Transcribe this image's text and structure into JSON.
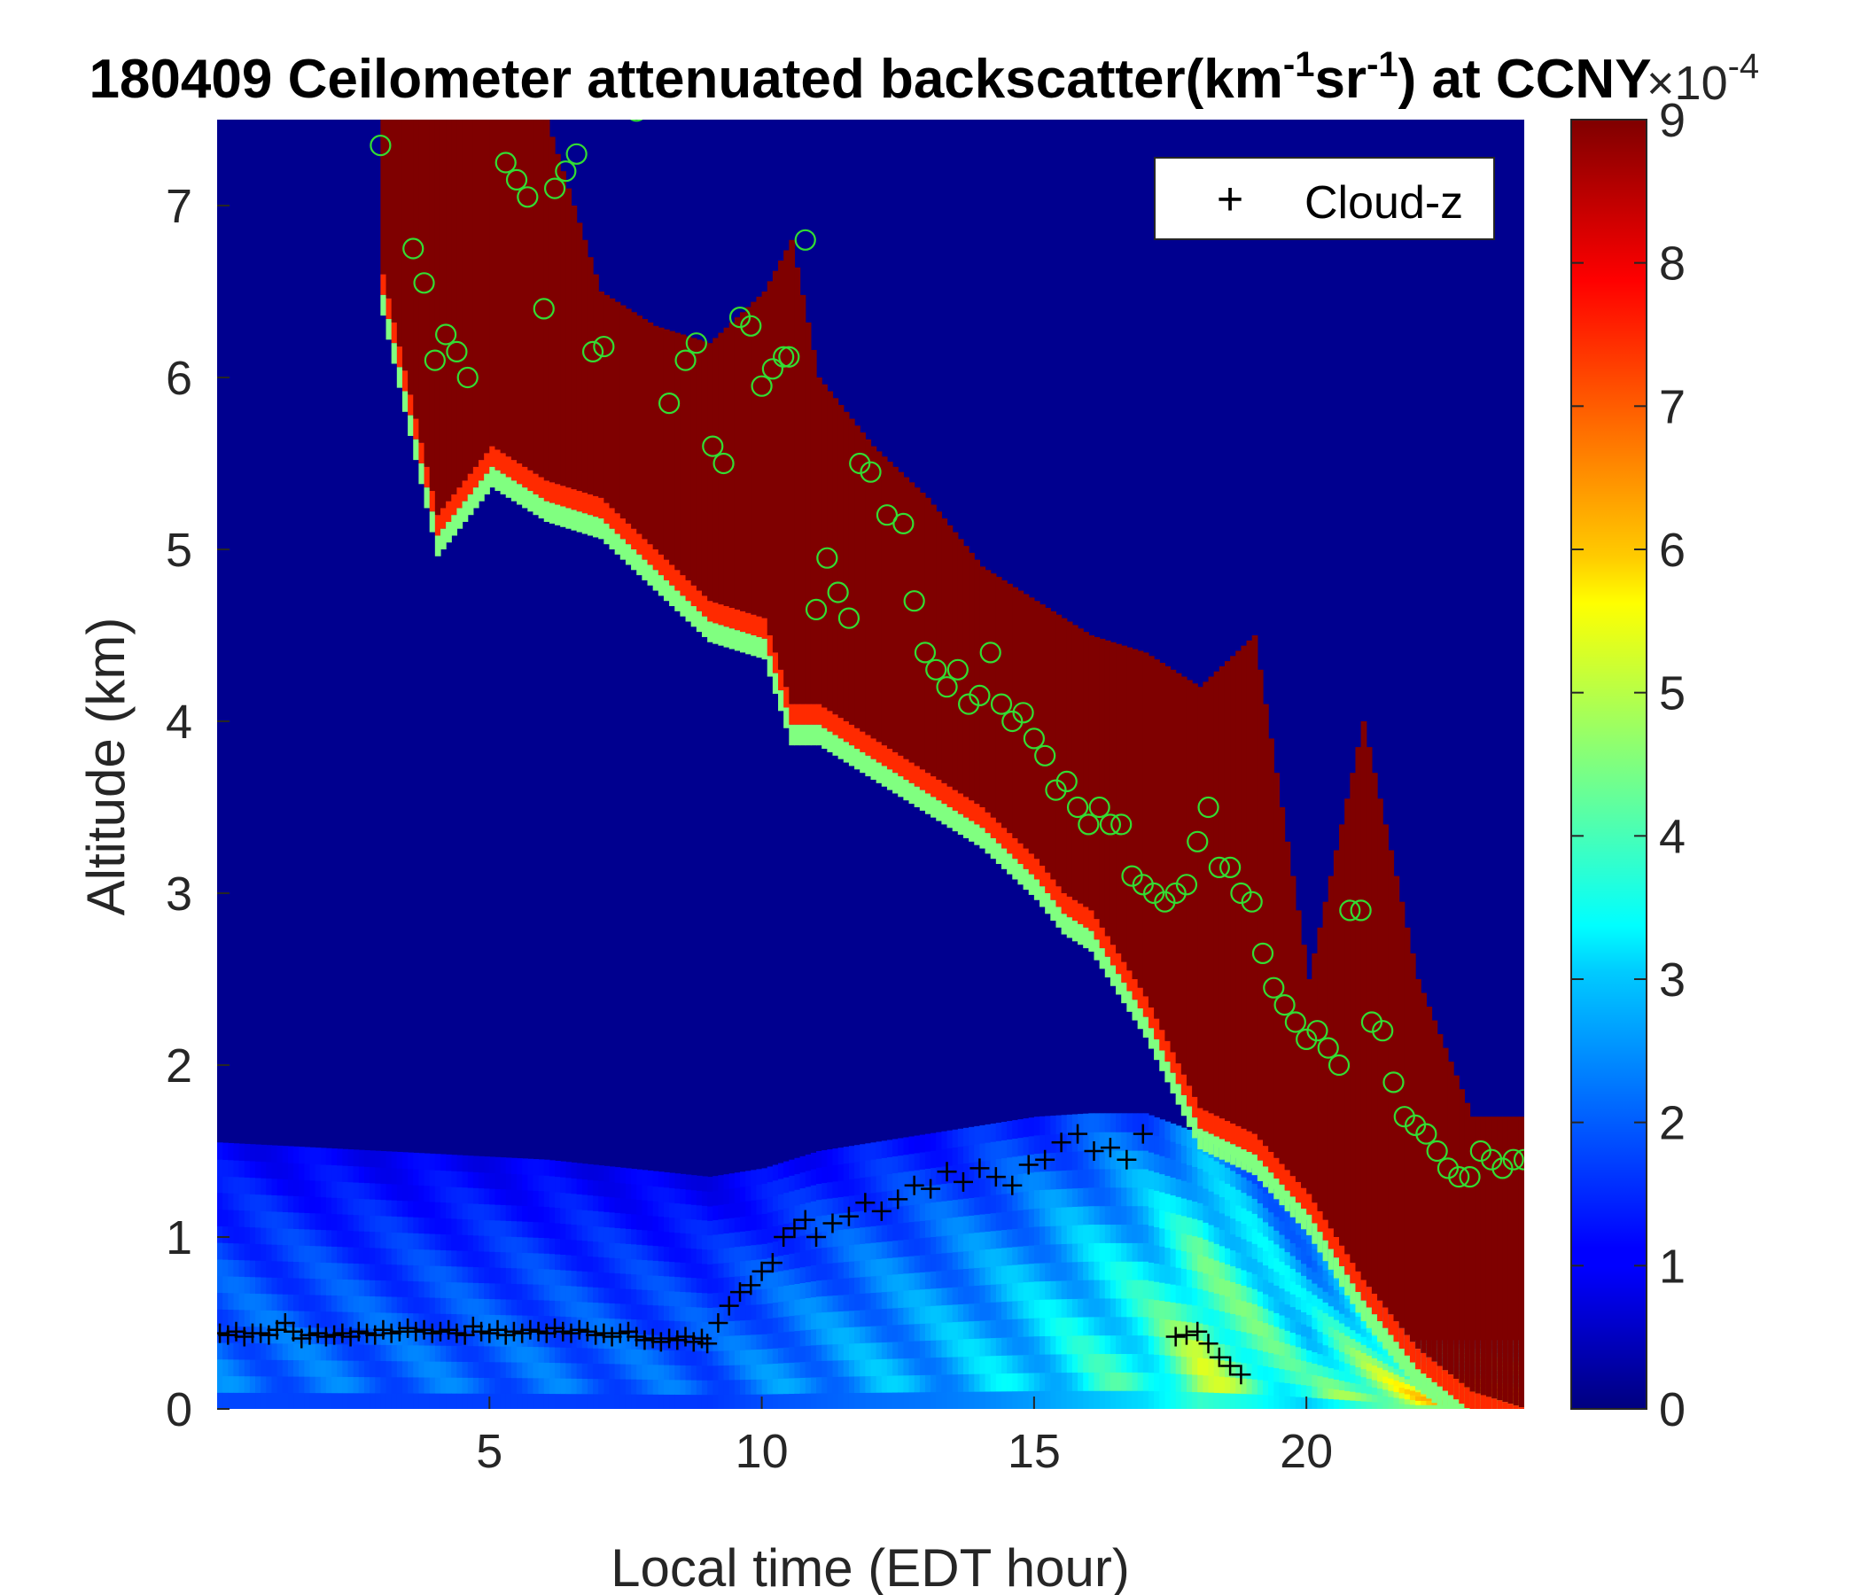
{
  "chart_data": {
    "type": "heatmap",
    "title": "180409 Ceilometer attenuated backscatter(km",
    "title_sup1": "-1",
    "title_mid": "sr",
    "title_sup2": "-1",
    "title_end": ") at CCNY",
    "xlabel": "Local time (EDT hour)",
    "ylabel": "Altitude (km)",
    "xlim": [
      0,
      24
    ],
    "ylim": [
      0,
      7.5
    ],
    "xticks": [
      "5",
      "10",
      "15",
      "20"
    ],
    "xtick_values": [
      5,
      10,
      15,
      20
    ],
    "yticks": [
      "0",
      "1",
      "2",
      "3",
      "4",
      "5",
      "6",
      "7"
    ],
    "ytick_values": [
      0,
      1,
      2,
      3,
      4,
      5,
      6,
      7
    ],
    "colorbar": {
      "min": 0,
      "max": 9,
      "ticks": [
        "0",
        "1",
        "2",
        "3",
        "4",
        "5",
        "6",
        "7",
        "8",
        "9"
      ],
      "tick_values": [
        0,
        1,
        2,
        3,
        4,
        5,
        6,
        7,
        8,
        9
      ],
      "exponent_base": "×10",
      "exponent": "-4",
      "colormap": "jet"
    },
    "legend": {
      "position": "top-right",
      "entries": [
        {
          "symbol": "+",
          "label": "Cloud-z"
        }
      ]
    },
    "cloud_band": {
      "time": [
        3.0,
        4.0,
        5.0,
        6.0,
        7.0,
        8.0,
        9.0,
        10.0,
        10.5,
        11.0,
        12.0,
        13.0,
        14.0,
        15.0,
        15.5,
        16.0,
        17.0,
        18.0,
        19.0,
        20.0,
        21.0,
        22.0,
        23.0,
        24.0
      ],
      "base_km": [
        6.6,
        5.2,
        5.6,
        5.4,
        5.3,
        5.0,
        4.7,
        4.6,
        4.1,
        4.1,
        3.9,
        3.7,
        3.5,
        3.2,
        3.0,
        2.9,
        2.4,
        1.75,
        1.6,
        1.25,
        0.75,
        0.35,
        0.1,
        0.0
      ],
      "top_km": [
        7.5,
        7.5,
        7.5,
        7.5,
        6.5,
        6.3,
        6.2,
        6.5,
        6.8,
        6.0,
        5.6,
        5.3,
        4.9,
        4.7,
        4.6,
        4.5,
        4.4,
        4.2,
        4.5,
        2.5,
        4.0,
        2.5,
        1.7,
        1.7
      ]
    },
    "aerosol_layer": {
      "time": [
        0,
        3,
        6,
        9,
        10,
        11,
        12,
        13,
        14,
        15,
        16,
        17,
        18,
        19,
        20,
        21,
        22
      ],
      "top_km": [
        1.55,
        1.5,
        1.45,
        1.35,
        1.4,
        1.5,
        1.55,
        1.6,
        1.65,
        1.7,
        1.72,
        1.72,
        1.6,
        1.4,
        1.1,
        0.75,
        0.4
      ],
      "peak_1e4": [
        2.5,
        2.4,
        2.4,
        2.3,
        2.6,
        2.8,
        3.0,
        3.1,
        3.3,
        3.6,
        4.0,
        4.4,
        5.5,
        5.0,
        4.2,
        5.5,
        6.5
      ]
    },
    "series": [
      {
        "name": "Cloud-z",
        "marker": "+",
        "color": "#000000",
        "x": [
          0.05,
          0.2,
          0.35,
          0.5,
          0.65,
          0.8,
          0.95,
          1.1,
          1.25,
          1.4,
          1.55,
          1.7,
          1.85,
          2.0,
          2.15,
          2.3,
          2.45,
          2.6,
          2.75,
          2.9,
          3.05,
          3.2,
          3.35,
          3.5,
          3.65,
          3.8,
          3.95,
          4.1,
          4.25,
          4.4,
          4.55,
          4.7,
          4.85,
          5.0,
          5.15,
          5.3,
          5.45,
          5.6,
          5.75,
          5.9,
          6.05,
          6.2,
          6.35,
          6.5,
          6.65,
          6.8,
          6.95,
          7.1,
          7.25,
          7.4,
          7.55,
          7.7,
          7.85,
          8.0,
          8.15,
          8.3,
          8.45,
          8.6,
          8.75,
          8.9,
          9.0,
          9.2,
          9.4,
          9.6,
          9.8,
          10.0,
          10.2,
          10.4,
          10.6,
          10.8,
          11.0,
          11.3,
          11.6,
          11.9,
          12.2,
          12.5,
          12.8,
          13.1,
          13.4,
          13.7,
          14.0,
          14.3,
          14.6,
          14.9,
          15.2,
          15.5,
          15.8,
          16.1,
          16.4,
          16.7,
          17.0,
          17.6,
          17.8,
          18.0,
          18.2,
          18.4,
          18.6,
          18.8
        ],
        "y": [
          0.44,
          0.43,
          0.45,
          0.42,
          0.44,
          0.44,
          0.43,
          0.46,
          0.5,
          0.45,
          0.41,
          0.43,
          0.44,
          0.42,
          0.43,
          0.44,
          0.42,
          0.45,
          0.44,
          0.43,
          0.46,
          0.44,
          0.45,
          0.47,
          0.45,
          0.46,
          0.44,
          0.45,
          0.46,
          0.44,
          0.43,
          0.48,
          0.45,
          0.44,
          0.46,
          0.43,
          0.45,
          0.44,
          0.46,
          0.45,
          0.44,
          0.47,
          0.45,
          0.44,
          0.46,
          0.45,
          0.43,
          0.44,
          0.42,
          0.44,
          0.45,
          0.42,
          0.4,
          0.41,
          0.39,
          0.41,
          0.4,
          0.42,
          0.39,
          0.41,
          0.38,
          0.5,
          0.6,
          0.68,
          0.72,
          0.8,
          0.85,
          1.0,
          1.05,
          1.1,
          1.0,
          1.08,
          1.12,
          1.2,
          1.15,
          1.22,
          1.3,
          1.28,
          1.38,
          1.32,
          1.4,
          1.35,
          1.3,
          1.42,
          1.45,
          1.55,
          1.6,
          1.5,
          1.52,
          1.45,
          1.6,
          0.42,
          0.43,
          0.45,
          0.38,
          0.3,
          0.25,
          0.2
        ]
      },
      {
        "name": "",
        "marker": "o",
        "color": "#33dd33",
        "x": [
          3.0,
          3.6,
          3.8,
          4.0,
          4.2,
          4.4,
          4.6,
          5.3,
          5.5,
          5.7,
          6.0,
          6.2,
          6.4,
          6.6,
          6.9,
          7.1,
          7.7,
          8.3,
          8.6,
          8.8,
          9.1,
          9.3,
          9.6,
          9.8,
          10.0,
          10.2,
          10.4,
          10.5,
          10.8,
          11.0,
          11.2,
          11.4,
          11.6,
          11.8,
          12.0,
          12.3,
          12.6,
          12.8,
          13.0,
          13.2,
          13.4,
          13.6,
          13.8,
          14.0,
          14.2,
          14.4,
          14.6,
          14.8,
          15.0,
          15.2,
          15.4,
          15.6,
          15.8,
          16.0,
          16.2,
          16.4,
          16.6,
          16.8,
          17.0,
          17.2,
          17.4,
          17.6,
          17.8,
          18.0,
          18.2,
          18.4,
          18.6,
          18.8,
          19.0,
          19.2,
          19.4,
          19.6,
          19.8,
          20.0,
          20.2,
          20.4,
          20.6,
          20.8,
          21.0,
          21.2,
          21.4,
          21.6,
          21.8,
          22.0,
          22.2,
          22.4,
          22.6,
          22.8,
          23.0,
          23.2,
          23.4,
          23.6,
          23.8,
          24.0
        ],
        "y": [
          7.35,
          6.75,
          6.55,
          6.1,
          6.25,
          6.15,
          6.0,
          7.25,
          7.15,
          7.05,
          6.4,
          7.1,
          7.2,
          7.3,
          6.15,
          6.18,
          7.55,
          5.85,
          6.1,
          6.2,
          5.6,
          5.5,
          6.35,
          6.3,
          5.95,
          6.05,
          6.12,
          6.12,
          6.8,
          4.65,
          4.95,
          4.75,
          4.6,
          5.5,
          5.45,
          5.2,
          5.15,
          4.7,
          4.4,
          4.3,
          4.2,
          4.3,
          4.1,
          4.15,
          4.4,
          4.1,
          4.0,
          4.05,
          3.9,
          3.8,
          3.6,
          3.65,
          3.5,
          3.4,
          3.5,
          3.4,
          3.4,
          3.1,
          3.05,
          3.0,
          2.95,
          3.0,
          3.05,
          3.3,
          3.5,
          3.15,
          3.15,
          3.0,
          2.95,
          2.65,
          2.45,
          2.35,
          2.25,
          2.15,
          2.2,
          2.1,
          2.0,
          2.9,
          2.9,
          2.25,
          2.2,
          1.9,
          1.7,
          1.65,
          1.6,
          1.5,
          1.4,
          1.35,
          1.35,
          1.5,
          1.45,
          1.4,
          1.45,
          1.45
        ]
      }
    ]
  }
}
